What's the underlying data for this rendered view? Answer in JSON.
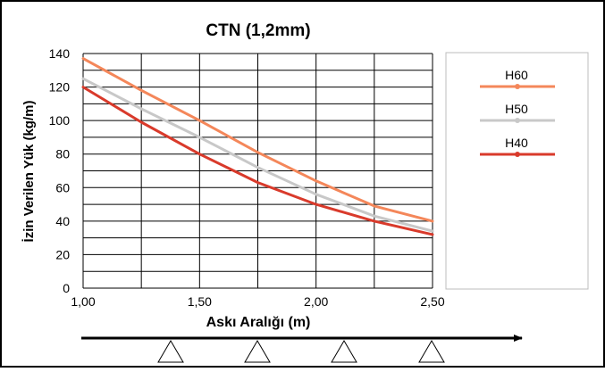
{
  "chart_data": {
    "type": "line",
    "title": "CTN (1,2mm)",
    "xlabel": "Askı Aralığı (m)",
    "ylabel": "İzin Verilen Yük (kg/m)",
    "xlim": [
      1.0,
      2.5
    ],
    "ylim": [
      0,
      140
    ],
    "x_ticks": [
      "1,00",
      "1,50",
      "2,00",
      "2,50"
    ],
    "y_ticks": [
      "0",
      "20",
      "40",
      "60",
      "80",
      "100",
      "120",
      "140"
    ],
    "grid": true,
    "legend_position": "right",
    "series": [
      {
        "name": "H60",
        "color": "#f4875a",
        "x": [
          1.0,
          1.25,
          1.5,
          1.75,
          2.0,
          2.25,
          2.5
        ],
        "values": [
          137,
          118,
          100,
          81,
          64,
          49,
          40
        ]
      },
      {
        "name": "H50",
        "color": "#c8c8c8",
        "x": [
          1.0,
          1.25,
          1.5,
          1.75,
          2.0,
          2.25,
          2.5
        ],
        "values": [
          125,
          107,
          90,
          72,
          56,
          43,
          34
        ]
      },
      {
        "name": "H40",
        "color": "#d93a2b",
        "x": [
          1.0,
          1.25,
          1.5,
          1.75,
          2.0,
          2.25,
          2.5
        ],
        "values": [
          120,
          99,
          80,
          63,
          50,
          40,
          32
        ]
      }
    ]
  }
}
